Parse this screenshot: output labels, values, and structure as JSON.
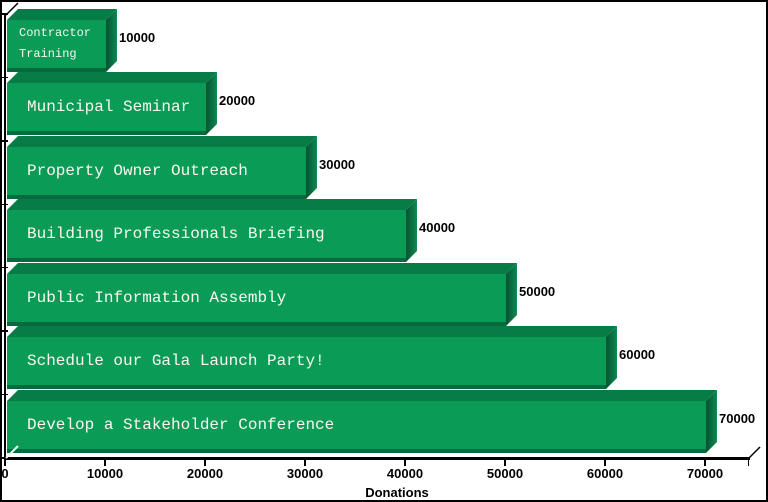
{
  "chart_data": {
    "type": "bar",
    "orientation": "horizontal",
    "style": "3d",
    "categories": [
      "Contractor Training",
      "Municipal Seminar",
      "Property Owner Outreach",
      "Building Professionals Briefing",
      "Public Information Assembly",
      "Schedule our Gala Launch Party!",
      "Develop a Stakeholder Conference"
    ],
    "values": [
      10000,
      20000,
      30000,
      40000,
      50000,
      60000,
      70000
    ],
    "value_labels": [
      "10000",
      "20000",
      "30000",
      "40000",
      "50000",
      "60000",
      "70000"
    ],
    "x_ticks": [
      0,
      10000,
      20000,
      30000,
      40000,
      50000,
      60000,
      70000
    ],
    "x_tick_labels": [
      "0",
      "10000",
      "20000",
      "30000",
      "40000",
      "50000",
      "60000",
      "70000"
    ],
    "xlabel": "Donations",
    "xlim": [
      0,
      74000
    ],
    "grid": "off",
    "legend": "none",
    "colors": {
      "bar_front": "#0a9b57",
      "bar_top": "#077c46",
      "bar_bottom_edge": "#056b3e",
      "bar_side_dark": "#045231",
      "bar_side_light": "#0f8a52",
      "bar_label_text": "#f9f7ef",
      "value_text": "#000000",
      "axis": "#000000",
      "background": "#ffffff"
    }
  }
}
